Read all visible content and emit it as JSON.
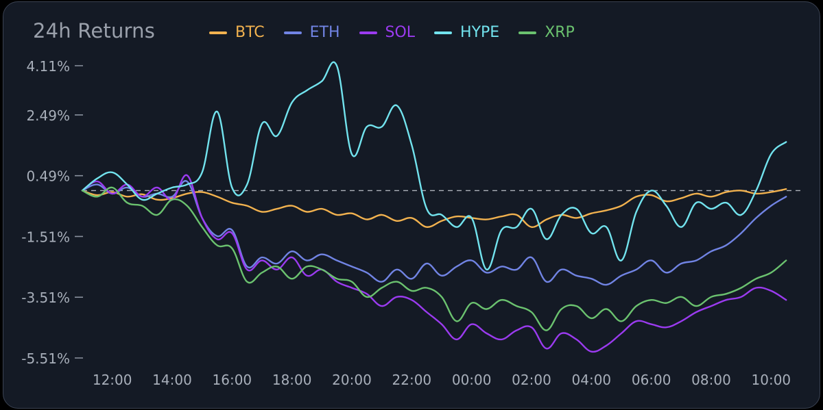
{
  "chart_data": {
    "type": "line",
    "title": "24h Returns",
    "xlabel": "",
    "ylabel": "",
    "y_unit": "%",
    "ylim": [
      -6.2,
      4.5
    ],
    "y_ticks": [
      4.11,
      2.49,
      0.49,
      -1.51,
      -3.51,
      -5.51
    ],
    "y_tick_labels": [
      "4.11%",
      "2.49%",
      "0.49%",
      "-1.51%",
      "-3.51%",
      "-5.51%"
    ],
    "x_tick_labels": [
      "12:00",
      "14:00",
      "16:00",
      "18:00",
      "20:00",
      "22:00",
      "00:00",
      "02:00",
      "04:00",
      "06:00",
      "08:00",
      "10:00"
    ],
    "x_ticks_hours": [
      1,
      3,
      5,
      7,
      9,
      11,
      13,
      15,
      17,
      19,
      21,
      23
    ],
    "x_range_hours": [
      0,
      24
    ],
    "baseline": 0,
    "baseline_style": "dashed",
    "grid": false,
    "legend_position": "top",
    "background": "#141a25",
    "series": [
      {
        "name": "BTC",
        "color": "#f2b24f",
        "points": [
          [
            0,
            0
          ],
          [
            0.5,
            -0.15
          ],
          [
            1,
            -0.05
          ],
          [
            1.5,
            -0.2
          ],
          [
            2,
            -0.12
          ],
          [
            2.5,
            -0.3
          ],
          [
            3,
            -0.25
          ],
          [
            3.5,
            -0.1
          ],
          [
            4,
            -0.05
          ],
          [
            4.5,
            -0.2
          ],
          [
            5,
            -0.4
          ],
          [
            5.5,
            -0.5
          ],
          [
            6,
            -0.7
          ],
          [
            6.5,
            -0.6
          ],
          [
            7,
            -0.5
          ],
          [
            7.5,
            -0.7
          ],
          [
            8,
            -0.6
          ],
          [
            8.5,
            -0.8
          ],
          [
            9,
            -0.75
          ],
          [
            9.5,
            -0.95
          ],
          [
            10,
            -0.8
          ],
          [
            10.5,
            -1.0
          ],
          [
            11,
            -0.9
          ],
          [
            11.5,
            -1.2
          ],
          [
            12,
            -1.0
          ],
          [
            12.5,
            -0.85
          ],
          [
            13,
            -0.9
          ],
          [
            13.5,
            -0.95
          ],
          [
            14,
            -0.85
          ],
          [
            14.5,
            -0.8
          ],
          [
            15,
            -1.2
          ],
          [
            15.5,
            -0.95
          ],
          [
            16,
            -0.8
          ],
          [
            16.5,
            -0.9
          ],
          [
            17,
            -0.75
          ],
          [
            17.5,
            -0.65
          ],
          [
            18,
            -0.5
          ],
          [
            18.5,
            -0.2
          ],
          [
            19,
            -0.15
          ],
          [
            19.5,
            -0.35
          ],
          [
            20,
            -0.25
          ],
          [
            20.5,
            -0.1
          ],
          [
            21,
            -0.2
          ],
          [
            21.5,
            -0.05
          ],
          [
            22,
            0
          ],
          [
            22.5,
            -0.1
          ],
          [
            23,
            -0.05
          ],
          [
            23.5,
            0.05
          ]
        ]
      },
      {
        "name": "ETH",
        "color": "#7184e4",
        "points": [
          [
            0,
            0
          ],
          [
            0.5,
            0.2
          ],
          [
            1,
            -0.1
          ],
          [
            1.5,
            0.1
          ],
          [
            2,
            -0.2
          ],
          [
            2.5,
            -0.1
          ],
          [
            3,
            -0.2
          ],
          [
            3.5,
            0.3
          ],
          [
            4,
            -0.9
          ],
          [
            4.5,
            -1.5
          ],
          [
            5,
            -1.3
          ],
          [
            5.5,
            -2.5
          ],
          [
            6,
            -2.2
          ],
          [
            6.5,
            -2.4
          ],
          [
            7,
            -2.0
          ],
          [
            7.5,
            -2.3
          ],
          [
            8,
            -2.1
          ],
          [
            8.5,
            -2.3
          ],
          [
            9,
            -2.5
          ],
          [
            9.5,
            -2.7
          ],
          [
            10,
            -3.0
          ],
          [
            10.5,
            -2.6
          ],
          [
            11,
            -2.9
          ],
          [
            11.5,
            -2.4
          ],
          [
            12,
            -2.8
          ],
          [
            12.5,
            -2.5
          ],
          [
            13,
            -2.3
          ],
          [
            13.5,
            -2.7
          ],
          [
            14,
            -2.5
          ],
          [
            14.5,
            -2.6
          ],
          [
            15,
            -2.2
          ],
          [
            15.5,
            -3.0
          ],
          [
            16,
            -2.6
          ],
          [
            16.5,
            -2.8
          ],
          [
            17,
            -2.9
          ],
          [
            17.5,
            -3.1
          ],
          [
            18,
            -2.8
          ],
          [
            18.5,
            -2.6
          ],
          [
            19,
            -2.3
          ],
          [
            19.5,
            -2.7
          ],
          [
            20,
            -2.4
          ],
          [
            20.5,
            -2.3
          ],
          [
            21,
            -2.0
          ],
          [
            21.5,
            -1.8
          ],
          [
            22,
            -1.4
          ],
          [
            22.5,
            -0.9
          ],
          [
            23,
            -0.5
          ],
          [
            23.5,
            -0.2
          ]
        ]
      },
      {
        "name": "SOL",
        "color": "#9b3bf0",
        "points": [
          [
            0,
            0
          ],
          [
            0.5,
            0.3
          ],
          [
            1,
            -0.1
          ],
          [
            1.5,
            0.2
          ],
          [
            2,
            -0.2
          ],
          [
            2.5,
            0.1
          ],
          [
            3,
            -0.3
          ],
          [
            3.5,
            0.5
          ],
          [
            4,
            -0.9
          ],
          [
            4.5,
            -1.6
          ],
          [
            5,
            -1.4
          ],
          [
            5.5,
            -2.6
          ],
          [
            6,
            -2.3
          ],
          [
            6.5,
            -2.6
          ],
          [
            7,
            -2.2
          ],
          [
            7.5,
            -2.8
          ],
          [
            8,
            -2.6
          ],
          [
            8.5,
            -3.0
          ],
          [
            9,
            -3.2
          ],
          [
            9.5,
            -3.4
          ],
          [
            10,
            -3.8
          ],
          [
            10.5,
            -3.5
          ],
          [
            11,
            -3.6
          ],
          [
            11.5,
            -4.0
          ],
          [
            12,
            -4.4
          ],
          [
            12.5,
            -4.9
          ],
          [
            13,
            -4.4
          ],
          [
            13.5,
            -4.7
          ],
          [
            14,
            -4.9
          ],
          [
            14.5,
            -4.6
          ],
          [
            15,
            -4.5
          ],
          [
            15.5,
            -5.2
          ],
          [
            16,
            -4.7
          ],
          [
            16.5,
            -4.9
          ],
          [
            17,
            -5.3
          ],
          [
            17.5,
            -5.1
          ],
          [
            18,
            -4.7
          ],
          [
            18.5,
            -4.3
          ],
          [
            19,
            -4.4
          ],
          [
            19.5,
            -4.5
          ],
          [
            20,
            -4.3
          ],
          [
            20.5,
            -4.0
          ],
          [
            21,
            -3.8
          ],
          [
            21.5,
            -3.6
          ],
          [
            22,
            -3.5
          ],
          [
            22.5,
            -3.2
          ],
          [
            23,
            -3.3
          ],
          [
            23.5,
            -3.6
          ]
        ]
      },
      {
        "name": "HYPE",
        "color": "#72e3ee",
        "points": [
          [
            0,
            0
          ],
          [
            0.5,
            0.4
          ],
          [
            1,
            0.6
          ],
          [
            1.5,
            0.2
          ],
          [
            2,
            -0.3
          ],
          [
            2.5,
            -0.1
          ],
          [
            3,
            0.1
          ],
          [
            3.5,
            0.2
          ],
          [
            4,
            0.6
          ],
          [
            4.5,
            2.6
          ],
          [
            5,
            0.1
          ],
          [
            5.5,
            0.2
          ],
          [
            6,
            2.2
          ],
          [
            6.5,
            1.8
          ],
          [
            7,
            2.9
          ],
          [
            7.5,
            3.3
          ],
          [
            8,
            3.6
          ],
          [
            8.5,
            4.1
          ],
          [
            9,
            1.2
          ],
          [
            9.5,
            2.1
          ],
          [
            10,
            2.1
          ],
          [
            10.5,
            2.8
          ],
          [
            11,
            1.5
          ],
          [
            11.5,
            -0.6
          ],
          [
            12,
            -0.8
          ],
          [
            12.5,
            -1.2
          ],
          [
            13,
            -0.9
          ],
          [
            13.5,
            -2.6
          ],
          [
            14,
            -1.3
          ],
          [
            14.5,
            -1.2
          ],
          [
            15,
            -0.6
          ],
          [
            15.5,
            -1.6
          ],
          [
            16,
            -0.8
          ],
          [
            16.5,
            -0.6
          ],
          [
            17,
            -1.4
          ],
          [
            17.5,
            -1.2
          ],
          [
            18,
            -2.3
          ],
          [
            18.5,
            -0.7
          ],
          [
            19,
            0
          ],
          [
            19.5,
            -0.5
          ],
          [
            20,
            -1.2
          ],
          [
            20.5,
            -0.4
          ],
          [
            21,
            -0.6
          ],
          [
            21.5,
            -0.4
          ],
          [
            22,
            -0.8
          ],
          [
            22.5,
            0
          ],
          [
            23,
            1.2
          ],
          [
            23.5,
            1.6
          ]
        ]
      },
      {
        "name": "XRP",
        "color": "#6bc26f",
        "points": [
          [
            0,
            0
          ],
          [
            0.5,
            -0.2
          ],
          [
            1,
            0.1
          ],
          [
            1.5,
            -0.4
          ],
          [
            2,
            -0.5
          ],
          [
            2.5,
            -0.8
          ],
          [
            3,
            -0.3
          ],
          [
            3.5,
            -0.5
          ],
          [
            4,
            -1.2
          ],
          [
            4.5,
            -1.8
          ],
          [
            5,
            -1.9
          ],
          [
            5.5,
            -3.0
          ],
          [
            6,
            -2.7
          ],
          [
            6.5,
            -2.5
          ],
          [
            7,
            -2.9
          ],
          [
            7.5,
            -2.5
          ],
          [
            8,
            -2.6
          ],
          [
            8.5,
            -2.9
          ],
          [
            9,
            -3.0
          ],
          [
            9.5,
            -3.5
          ],
          [
            10,
            -3.2
          ],
          [
            10.5,
            -3.0
          ],
          [
            11,
            -3.3
          ],
          [
            11.5,
            -3.2
          ],
          [
            12,
            -3.5
          ],
          [
            12.5,
            -4.3
          ],
          [
            13,
            -3.7
          ],
          [
            13.5,
            -3.9
          ],
          [
            14,
            -3.6
          ],
          [
            14.5,
            -3.8
          ],
          [
            15,
            -4.0
          ],
          [
            15.5,
            -4.6
          ],
          [
            16,
            -3.9
          ],
          [
            16.5,
            -3.8
          ],
          [
            17,
            -4.2
          ],
          [
            17.5,
            -3.9
          ],
          [
            18,
            -4.3
          ],
          [
            18.5,
            -3.8
          ],
          [
            19,
            -3.6
          ],
          [
            19.5,
            -3.7
          ],
          [
            20,
            -3.5
          ],
          [
            20.5,
            -3.8
          ],
          [
            21,
            -3.5
          ],
          [
            21.5,
            -3.4
          ],
          [
            22,
            -3.2
          ],
          [
            22.5,
            -2.9
          ],
          [
            23,
            -2.7
          ],
          [
            23.5,
            -2.3
          ]
        ]
      }
    ]
  }
}
